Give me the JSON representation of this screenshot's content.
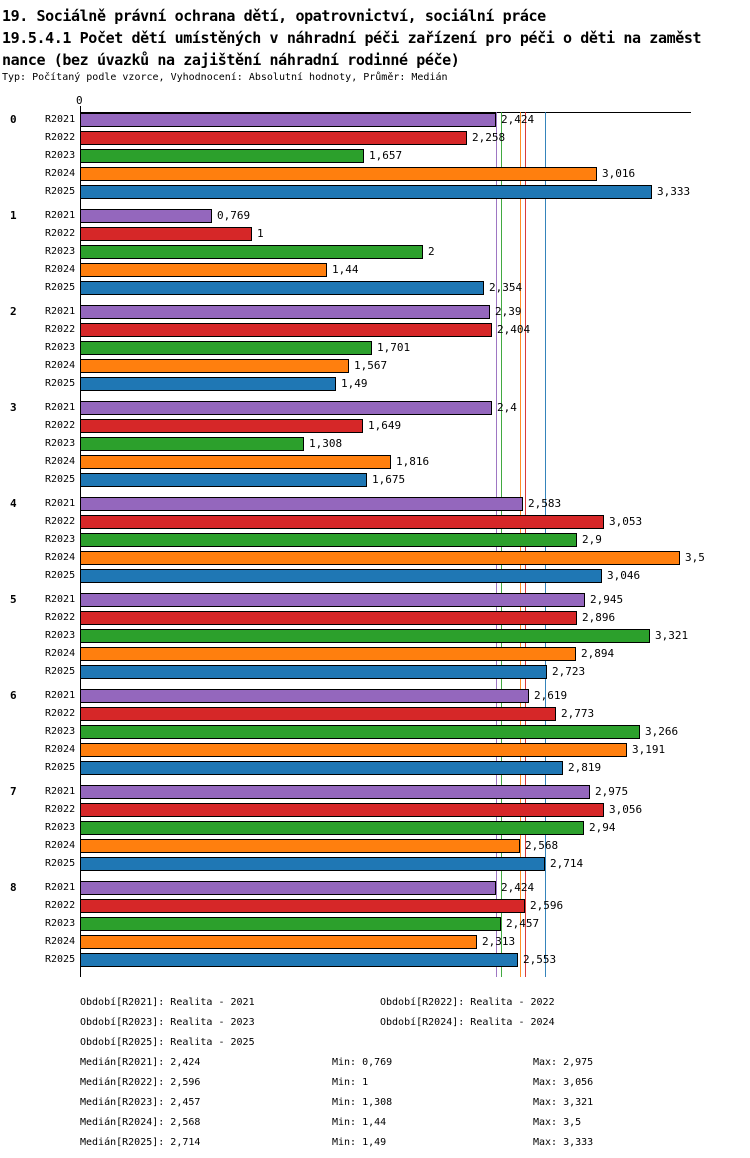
{
  "title": {
    "line1": "19. Sociálně právní ochrana dětí, opatrovnictví, sociální práce",
    "line2": "19.5.4.1 Počet dětí umístěných v náhradní péči zařízení pro péči o děti na zaměst",
    "line3": "nance (bez úvazků na zajištění náhradní rodinné péče)",
    "subtitle": "Typ: Počítaný podle vzorce, Vyhodnocení: Absolutní hodnoty, Průměr: Medián"
  },
  "chart_data": {
    "type": "bar",
    "orientation": "horizontal",
    "x_axis": {
      "zero_label": "0",
      "xlim": [
        0,
        3.56
      ],
      "grid": false
    },
    "decimal_separator": ",",
    "categories": [
      "0",
      "1",
      "2",
      "3",
      "4",
      "5",
      "6",
      "7",
      "8"
    ],
    "series": [
      {
        "name": "R2021",
        "color": "#9467bd",
        "median": 2.424,
        "min": 0.769,
        "max": 2.975,
        "values": [
          2.424,
          0.769,
          2.39,
          2.4,
          2.583,
          2.945,
          2.619,
          2.975,
          2.424
        ]
      },
      {
        "name": "R2022",
        "color": "#d62728",
        "median": 2.596,
        "min": 1,
        "max": 3.056,
        "values": [
          2.258,
          1,
          2.404,
          1.649,
          3.053,
          2.896,
          2.773,
          3.056,
          2.596
        ]
      },
      {
        "name": "R2023",
        "color": "#2ca02c",
        "median": 2.457,
        "min": 1.308,
        "max": 3.321,
        "values": [
          1.657,
          2,
          1.701,
          1.308,
          2.9,
          3.321,
          3.266,
          2.94,
          2.457
        ]
      },
      {
        "name": "R2024",
        "color": "#ff7f0e",
        "median": 2.568,
        "min": 1.44,
        "max": 3.5,
        "values": [
          3.016,
          1.44,
          1.567,
          1.816,
          3.5,
          2.894,
          3.191,
          2.568,
          2.313
        ]
      },
      {
        "name": "R2025",
        "color": "#1f77b4",
        "median": 2.714,
        "min": 1.49,
        "max": 3.333,
        "values": [
          3.333,
          2.354,
          1.49,
          1.675,
          3.046,
          2.723,
          2.819,
          2.714,
          2.553
        ]
      }
    ],
    "median_lines_shown": true
  },
  "legend": {
    "items": [
      "Období[R2021]: Realita - 2021",
      "Období[R2022]: Realita - 2022",
      "Období[R2023]: Realita - 2023",
      "Období[R2024]: Realita - 2024",
      "Období[R2025]: Realita - 2025"
    ]
  },
  "stats": {
    "rows": [
      {
        "median": "Medián[R2021]: 2,424",
        "min": "Min: 0,769",
        "max": "Max: 2,975"
      },
      {
        "median": "Medián[R2022]: 2,596",
        "min": "Min: 1",
        "max": "Max: 3,056"
      },
      {
        "median": "Medián[R2023]: 2,457",
        "min": "Min: 1,308",
        "max": "Max: 3,321"
      },
      {
        "median": "Medián[R2024]: 2,568",
        "min": "Min: 1,44",
        "max": "Max: 3,5"
      },
      {
        "median": "Medián[R2025]: 2,714",
        "min": "Min: 1,49",
        "max": "Max: 3,333"
      }
    ]
  }
}
